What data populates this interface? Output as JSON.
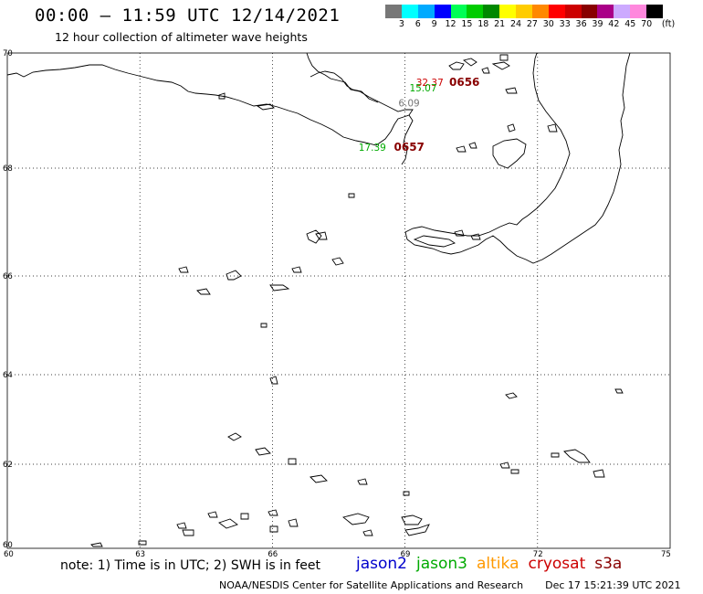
{
  "header": {
    "title": "00:00 – 11:59 UTC 12/14/2021",
    "subtitle": "12 hour collection of altimeter wave heights"
  },
  "colorbar": {
    "colors": [
      "#777777",
      "#00ffff",
      "#00aaff",
      "#0000ff",
      "#00ff55",
      "#00cc00",
      "#008800",
      "#ffff00",
      "#ffcc00",
      "#ff8800",
      "#ff0000",
      "#cc0000",
      "#880000",
      "#aa0088",
      "#ccaaff",
      "#ff88dd",
      "#000000"
    ],
    "labels": [
      "3",
      "6",
      "9",
      "12",
      "15",
      "18",
      "21",
      "24",
      "27",
      "30",
      "33",
      "36",
      "39",
      "42",
      "45",
      "70",
      "(ft)"
    ]
  },
  "map": {
    "lon_ticks": [
      {
        "value": 60,
        "label": "60"
      },
      {
        "value": 63,
        "label": "63"
      },
      {
        "value": 66,
        "label": "66"
      },
      {
        "value": 69,
        "label": "69"
      },
      {
        "value": 72,
        "label": "72"
      },
      {
        "value": 75,
        "label": "75"
      }
    ],
    "lat_ticks": [
      {
        "value": 60,
        "label": "60"
      },
      {
        "value": 62,
        "label": "62"
      },
      {
        "value": 64,
        "label": "64"
      },
      {
        "value": 66,
        "label": "66"
      },
      {
        "value": 68,
        "label": "68"
      },
      {
        "value": 70,
        "label": "70"
      }
    ],
    "grid": "dotted"
  },
  "observations": [
    {
      "text": "32.37",
      "color": "#cc0000",
      "lon": 69.25,
      "lat": 69.43
    },
    {
      "text": "0656",
      "color": "#880000",
      "lon": 70.0,
      "lat": 69.43,
      "bold": true
    },
    {
      "text": "15.07",
      "color": "#00aa00",
      "lon": 69.1,
      "lat": 69.33
    },
    {
      "text": "6.09",
      "color": "#777777",
      "lon": 68.85,
      "lat": 69.07
    },
    {
      "text": "17.39",
      "color": "#00aa00",
      "lon": 67.95,
      "lat": 68.3
    },
    {
      "text": "0657",
      "color": "#880000",
      "lon": 68.75,
      "lat": 68.3,
      "bold": true
    }
  ],
  "footer": {
    "note": "note: 1) Time is in UTC; 2) SWH is in feet",
    "satellites": [
      {
        "name": "jason2",
        "color": "#0000cc"
      },
      {
        "name": "jason3",
        "color": "#00aa00"
      },
      {
        "name": "altika",
        "color": "#ff9900"
      },
      {
        "name": "cryosat",
        "color": "#cc0000"
      },
      {
        "name": "s3a",
        "color": "#880000"
      }
    ],
    "credit": "NOAA/NESDIS Center for Satellite Applications and Research",
    "timestamp": "Dec 17 15:21:39 UTC 2021"
  }
}
